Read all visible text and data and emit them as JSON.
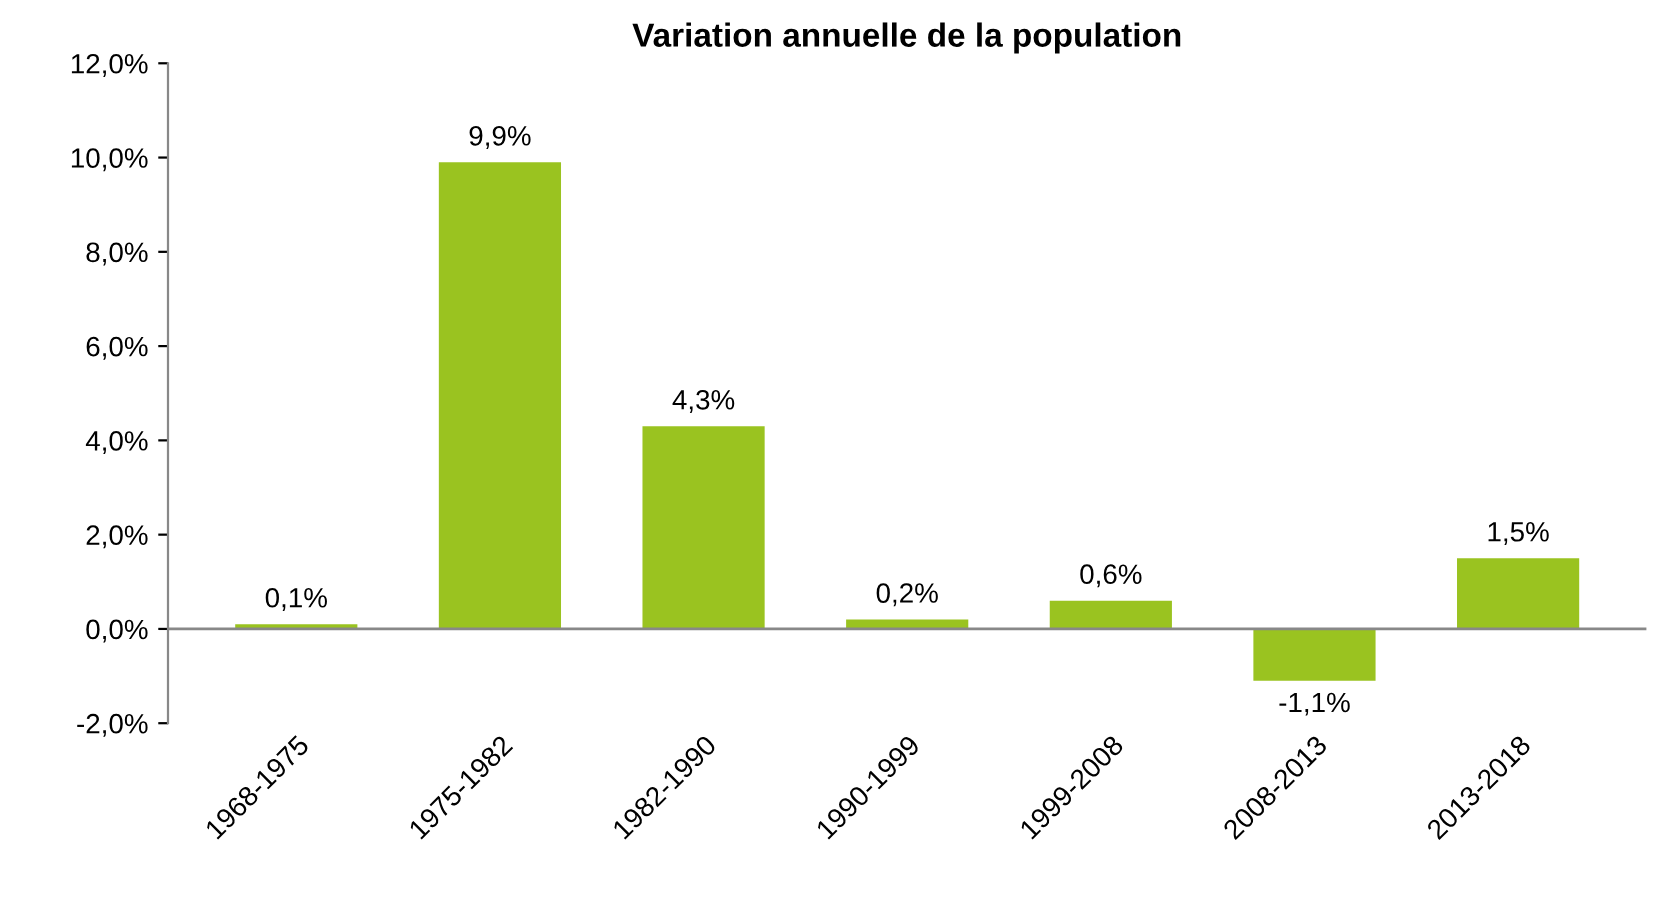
{
  "chart_data": {
    "type": "bar",
    "title": "Variation annuelle de la population",
    "categories": [
      "1968-1975",
      "1975-1982",
      "1982-1990",
      "1990-1999",
      "1999-2008",
      "2008-2013",
      "2013-2018"
    ],
    "values": [
      0.1,
      9.9,
      4.3,
      0.2,
      0.6,
      -1.1,
      1.5
    ],
    "color": "#9ac320",
    "value_labels": [
      "0,1%",
      "9,9%",
      "4,3%",
      "0,2%",
      "0,6%",
      "-1,1%",
      "1,5%"
    ],
    "ylim": [
      -2,
      12
    ],
    "yticks": [
      {
        "value": -2,
        "label": "-2,0%"
      },
      {
        "value": 0,
        "label": "0,0%"
      },
      {
        "value": 2,
        "label": "2,0%"
      },
      {
        "value": 4,
        "label": "4,0%"
      },
      {
        "value": 6,
        "label": "6,0%"
      },
      {
        "value": 8,
        "label": "8,0%"
      },
      {
        "value": 10,
        "label": "10,0%"
      },
      {
        "value": 12,
        "label": "12,0%"
      }
    ],
    "ref_lines": [
      {
        "axis": "y",
        "value": 0,
        "color": "#888888"
      }
    ],
    "grid": false,
    "legend": false
  }
}
